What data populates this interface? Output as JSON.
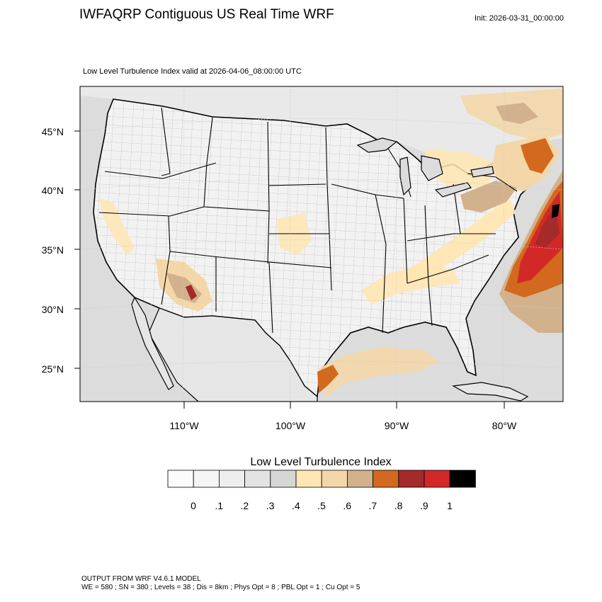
{
  "header": {
    "title": "IWFAQRP Contiguous US Real Time WRF",
    "init": "Init: 2026-03-31_00:00:00",
    "subtitle": "Low Level Turbulence Index valid at 2026-04-06_08:00:00 UTC"
  },
  "map": {
    "projection": "lambert-conformal",
    "region": "Contiguous US",
    "lat_labels": [
      "45°N",
      "40°N",
      "35°N",
      "30°N",
      "25°N"
    ],
    "lon_labels": [
      "110°W",
      "100°W",
      "90°W",
      "80°W"
    ],
    "colors": {
      "ocean": "#dcdcdc",
      "land": "#f2f2f2",
      "border": "#000000"
    },
    "hotspots": [
      {
        "name": "offshore-mid-atlantic",
        "level": 0.9
      },
      {
        "name": "outer-banks-core",
        "level": 1.0
      },
      {
        "name": "gulf-off-south-texas",
        "level": 0.7
      },
      {
        "name": "southern-arizona",
        "level": 0.7
      },
      {
        "name": "appalachians",
        "level": 0.5
      },
      {
        "name": "new-england",
        "level": 0.7
      },
      {
        "name": "central-plains",
        "level": 0.5
      },
      {
        "name": "hudson-bay-region",
        "level": 0.5
      }
    ]
  },
  "legend": {
    "title": "Low Level Turbulence Index",
    "colors": [
      "#fbfbfb",
      "#f5f5f5",
      "#eeeeee",
      "#e3e3e3",
      "#d6d6d6",
      "#ffe6b3",
      "#f3d7a8",
      "#d2b28c",
      "#d2691e",
      "#a52a2a",
      "#d32828",
      "#000000"
    ],
    "ticks": [
      "0",
      ".1",
      ".2",
      ".3",
      ".4",
      ".5",
      ".6",
      ".7",
      ".8",
      ".9",
      "1"
    ]
  },
  "footer": {
    "line1": "OUTPUT FROM WRF V4.6.1 MODEL",
    "line2": "WE = 580 ; SN = 380 ; Levels = 38 ; Dis = 8km ; Phys Opt = 8 ; PBL Opt = 1 ; Cu Opt = 5"
  }
}
